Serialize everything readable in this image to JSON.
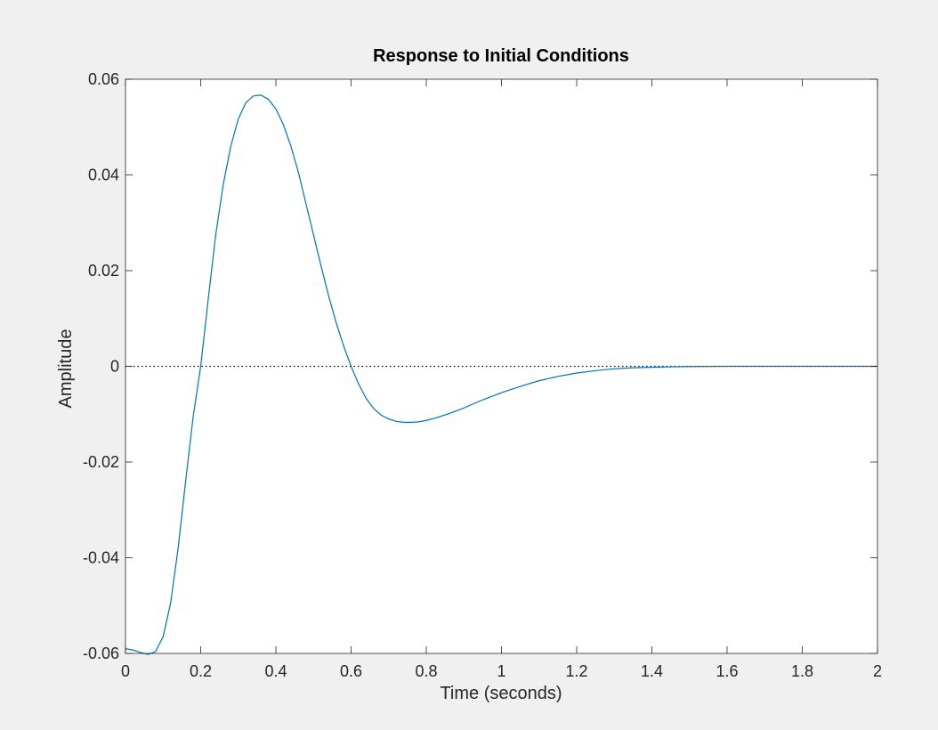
{
  "chart_data": {
    "type": "line",
    "title": "Response to Initial Conditions",
    "xlabel": "Time (seconds)",
    "ylabel": "Amplitude",
    "xlim": [
      0,
      2
    ],
    "ylim": [
      -0.06,
      0.06
    ],
    "xticks": [
      0,
      0.2,
      0.4,
      0.6,
      0.8,
      1,
      1.2,
      1.4,
      1.6,
      1.8,
      2
    ],
    "xtick_labels": [
      "0",
      "0.2",
      "0.4",
      "0.6",
      "0.8",
      "1",
      "1.2",
      "1.4",
      "1.6",
      "1.8",
      "2"
    ],
    "yticks": [
      -0.06,
      -0.04,
      -0.02,
      0,
      0.02,
      0.04,
      0.06
    ],
    "ytick_labels": [
      "-0.06",
      "-0.04",
      "-0.02",
      "0",
      "0.02",
      "0.04",
      "0.06"
    ],
    "grid": false,
    "reference_line": {
      "y": 0,
      "style": "dotted",
      "color": "#000000"
    },
    "series": [
      {
        "color": "#0072bd",
        "x": [
          0,
          0.02,
          0.04,
          0.06,
          0.08,
          0.1,
          0.12,
          0.14,
          0.16,
          0.18,
          0.2,
          0.22,
          0.24,
          0.26,
          0.28,
          0.3,
          0.32,
          0.34,
          0.36,
          0.38,
          0.4,
          0.42,
          0.44,
          0.46,
          0.48,
          0.5,
          0.52,
          0.54,
          0.56,
          0.58,
          0.6,
          0.62,
          0.64,
          0.66,
          0.68,
          0.7,
          0.72,
          0.74,
          0.76,
          0.78,
          0.8,
          0.82,
          0.84,
          0.86,
          0.88,
          0.9,
          0.92,
          0.95,
          1.0,
          1.05,
          1.1,
          1.15,
          1.2,
          1.25,
          1.3,
          1.35,
          1.4,
          1.45,
          1.5,
          1.55,
          1.6,
          1.65,
          1.7,
          1.75,
          1.8,
          1.85,
          1.9,
          1.95,
          2.0
        ],
        "values": [
          -0.059,
          -0.0593,
          -0.0598,
          -0.0602,
          -0.0596,
          -0.0565,
          -0.0495,
          -0.038,
          -0.024,
          -0.0105,
          0.0,
          0.014,
          0.0275,
          0.038,
          0.046,
          0.0517,
          0.0551,
          0.0565,
          0.0567,
          0.0558,
          0.0538,
          0.0505,
          0.046,
          0.0405,
          0.034,
          0.0275,
          0.021,
          0.0148,
          0.0092,
          0.0043,
          0.0,
          -0.0037,
          -0.0067,
          -0.0088,
          -0.0102,
          -0.011,
          -0.0115,
          -0.0117,
          -0.0117,
          -0.0116,
          -0.0113,
          -0.0109,
          -0.0104,
          -0.0099,
          -0.0093,
          -0.0087,
          -0.008,
          -0.007,
          -0.0055,
          -0.0042,
          -0.003,
          -0.0021,
          -0.0014,
          -0.0009,
          -0.0005,
          -0.0003,
          -0.0002,
          -0.0001,
          -5e-05,
          -2e-05,
          0.0,
          0.0,
          0.0,
          0.0,
          0.0,
          0.0,
          0.0,
          0.0,
          0.0
        ]
      }
    ]
  }
}
